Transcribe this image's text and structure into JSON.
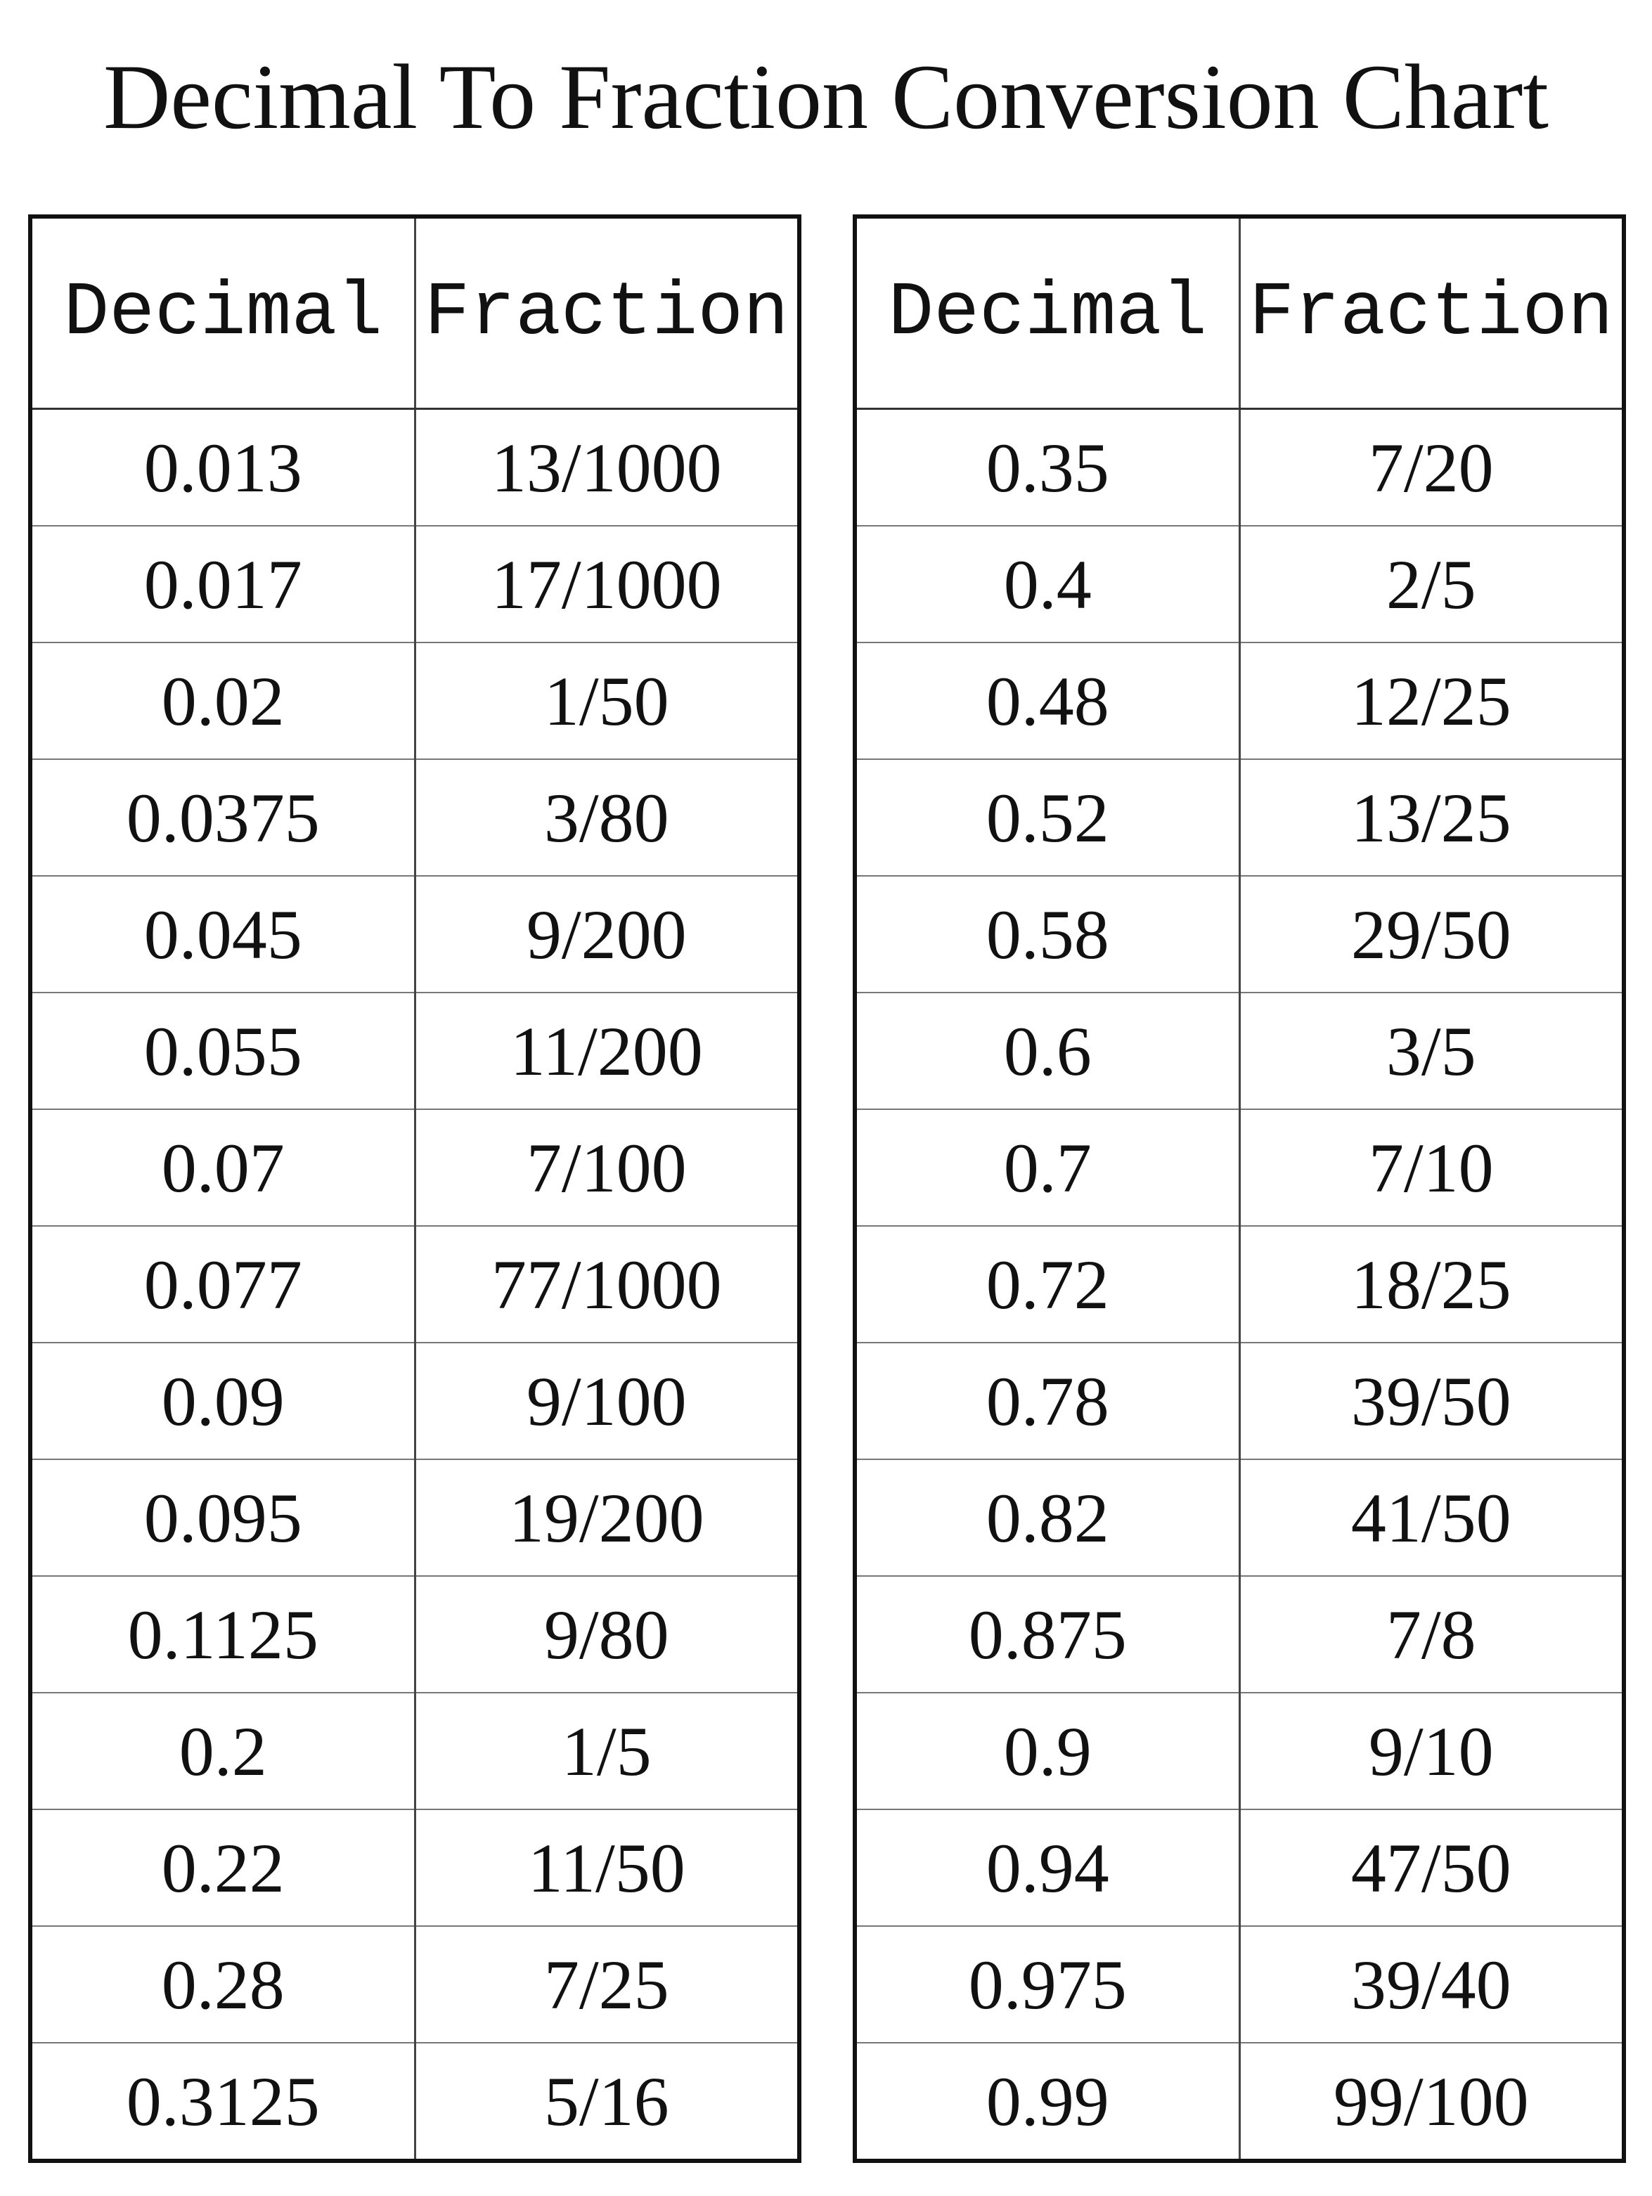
{
  "title": "Decimal To Fraction Conversion Chart",
  "tables": [
    {
      "header": [
        "Decimal",
        "Fraction"
      ],
      "rows": [
        [
          "0.013",
          "13/1000"
        ],
        [
          "0.017",
          "17/1000"
        ],
        [
          "0.02",
          "1/50"
        ],
        [
          "0.0375",
          "3/80"
        ],
        [
          "0.045",
          "9/200"
        ],
        [
          "0.055",
          "11/200"
        ],
        [
          "0.07",
          "7/100"
        ],
        [
          "0.077",
          "77/1000"
        ],
        [
          "0.09",
          "9/100"
        ],
        [
          "0.095",
          "19/200"
        ],
        [
          "0.1125",
          "9/80"
        ],
        [
          "0.2",
          "1/5"
        ],
        [
          "0.22",
          "11/50"
        ],
        [
          "0.28",
          "7/25"
        ],
        [
          "0.3125",
          "5/16"
        ]
      ]
    },
    {
      "header": [
        "Decimal",
        "Fraction"
      ],
      "rows": [
        [
          "0.35",
          "7/20"
        ],
        [
          "0.4",
          "2/5"
        ],
        [
          "0.48",
          "12/25"
        ],
        [
          "0.52",
          "13/25"
        ],
        [
          "0.58",
          "29/50"
        ],
        [
          "0.6",
          "3/5"
        ],
        [
          "0.7",
          "7/10"
        ],
        [
          "0.72",
          "18/25"
        ],
        [
          "0.78",
          "39/50"
        ],
        [
          "0.82",
          "41/50"
        ],
        [
          "0.875",
          "7/8"
        ],
        [
          "0.9",
          "9/10"
        ],
        [
          "0.94",
          "47/50"
        ],
        [
          "0.975",
          "39/40"
        ],
        [
          "0.99",
          "99/100"
        ]
      ]
    }
  ]
}
